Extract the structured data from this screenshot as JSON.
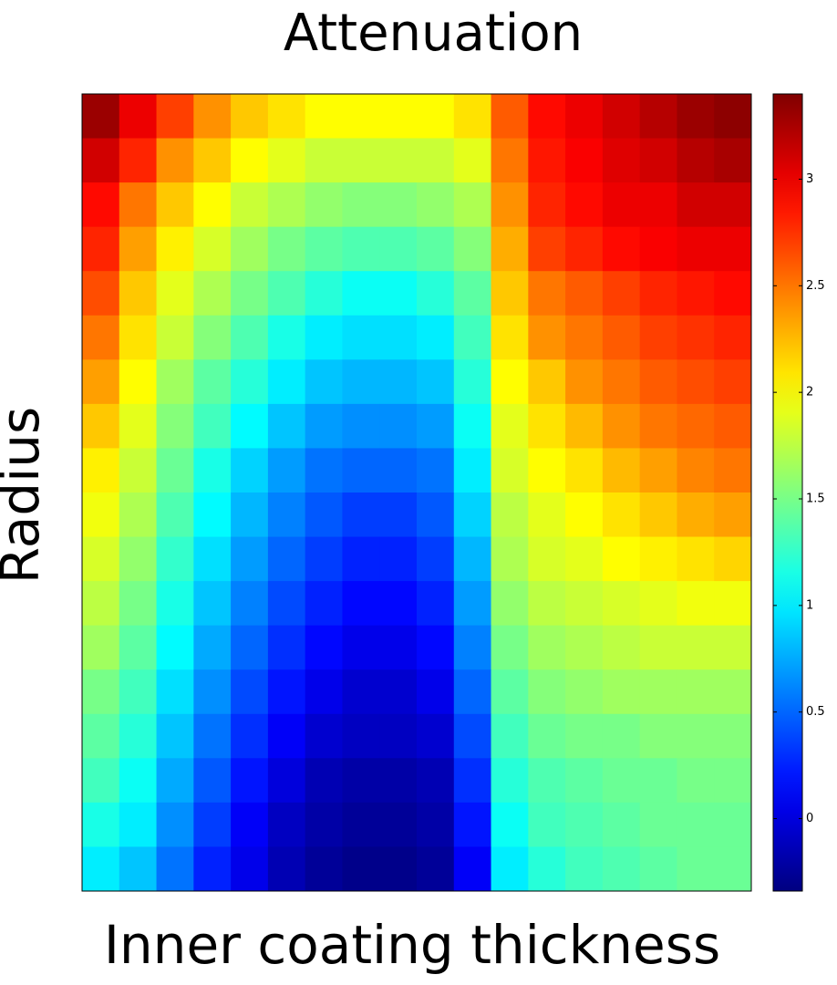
{
  "chart_data": {
    "type": "heatmap",
    "title": "Attenuation",
    "xlabel": "Inner coating thickness",
    "ylabel": "Radius",
    "colormap": "jet",
    "clim": [
      -0.34,
      3.4
    ],
    "cticks": [
      0,
      0.5,
      1,
      1.5,
      2,
      2.5,
      3
    ],
    "z": [
      [
        3.3,
        3.0,
        2.7,
        2.4,
        2.2,
        2.1,
        2.0,
        2.0,
        2.0,
        2.0,
        2.1,
        2.6,
        2.9,
        3.0,
        3.1,
        3.2,
        3.3,
        3.35
      ],
      [
        3.1,
        2.8,
        2.4,
        2.2,
        2.0,
        1.9,
        1.8,
        1.8,
        1.8,
        1.8,
        1.9,
        2.5,
        2.85,
        2.95,
        3.05,
        3.1,
        3.2,
        3.25
      ],
      [
        2.9,
        2.5,
        2.2,
        2.0,
        1.8,
        1.7,
        1.6,
        1.55,
        1.55,
        1.6,
        1.7,
        2.4,
        2.8,
        2.9,
        3.0,
        3.0,
        3.1,
        3.1
      ],
      [
        2.8,
        2.35,
        2.05,
        1.85,
        1.65,
        1.5,
        1.4,
        1.35,
        1.35,
        1.4,
        1.55,
        2.3,
        2.7,
        2.8,
        2.9,
        2.95,
        3.0,
        3.0
      ],
      [
        2.65,
        2.2,
        1.9,
        1.7,
        1.5,
        1.35,
        1.2,
        1.1,
        1.1,
        1.2,
        1.4,
        2.2,
        2.5,
        2.6,
        2.7,
        2.8,
        2.85,
        2.9
      ],
      [
        2.5,
        2.1,
        1.8,
        1.55,
        1.35,
        1.15,
        1.0,
        0.95,
        0.95,
        1.0,
        1.3,
        2.1,
        2.4,
        2.5,
        2.6,
        2.7,
        2.75,
        2.8
      ],
      [
        2.35,
        2.0,
        1.65,
        1.4,
        1.2,
        1.0,
        0.85,
        0.8,
        0.8,
        0.85,
        1.2,
        2.0,
        2.2,
        2.4,
        2.5,
        2.6,
        2.65,
        2.7
      ],
      [
        2.2,
        1.9,
        1.55,
        1.3,
        1.05,
        0.85,
        0.7,
        0.65,
        0.65,
        0.7,
        1.1,
        1.9,
        2.1,
        2.25,
        2.4,
        2.5,
        2.55,
        2.6
      ],
      [
        2.05,
        1.8,
        1.45,
        1.15,
        0.9,
        0.7,
        0.55,
        0.5,
        0.5,
        0.55,
        1.0,
        1.85,
        2.0,
        2.1,
        2.25,
        2.35,
        2.45,
        2.5
      ],
      [
        1.95,
        1.7,
        1.35,
        1.05,
        0.8,
        0.6,
        0.45,
        0.35,
        0.35,
        0.45,
        0.9,
        1.75,
        1.9,
        2.0,
        2.1,
        2.2,
        2.3,
        2.35
      ],
      [
        1.85,
        1.6,
        1.25,
        0.95,
        0.7,
        0.5,
        0.35,
        0.25,
        0.25,
        0.35,
        0.8,
        1.7,
        1.85,
        1.9,
        2.0,
        2.05,
        2.1,
        2.15
      ],
      [
        1.75,
        1.5,
        1.15,
        0.85,
        0.6,
        0.4,
        0.25,
        0.15,
        0.15,
        0.25,
        0.7,
        1.6,
        1.75,
        1.8,
        1.85,
        1.9,
        1.95,
        1.95
      ],
      [
        1.65,
        1.4,
        1.05,
        0.75,
        0.5,
        0.3,
        0.15,
        0.05,
        0.05,
        0.15,
        0.6,
        1.5,
        1.65,
        1.7,
        1.75,
        1.8,
        1.8,
        1.8
      ],
      [
        1.5,
        1.3,
        0.95,
        0.65,
        0.4,
        0.2,
        0.05,
        -0.05,
        -0.05,
        0.05,
        0.5,
        1.4,
        1.55,
        1.6,
        1.65,
        1.65,
        1.65,
        1.65
      ],
      [
        1.4,
        1.2,
        0.85,
        0.55,
        0.3,
        0.1,
        -0.05,
        -0.1,
        -0.1,
        -0.05,
        0.4,
        1.3,
        1.45,
        1.5,
        1.5,
        1.55,
        1.55,
        1.55
      ],
      [
        1.3,
        1.1,
        0.75,
        0.45,
        0.2,
        0.0,
        -0.15,
        -0.2,
        -0.2,
        -0.15,
        0.3,
        1.2,
        1.35,
        1.4,
        1.45,
        1.45,
        1.5,
        1.5
      ],
      [
        1.15,
        1.0,
        0.65,
        0.35,
        0.1,
        -0.1,
        -0.2,
        -0.25,
        -0.25,
        -0.2,
        0.2,
        1.1,
        1.3,
        1.35,
        1.4,
        1.45,
        1.45,
        1.45
      ],
      [
        1.0,
        0.85,
        0.55,
        0.25,
        0.05,
        -0.15,
        -0.25,
        -0.3,
        -0.3,
        -0.25,
        0.1,
        1.0,
        1.2,
        1.3,
        1.35,
        1.4,
        1.45,
        1.45
      ]
    ]
  }
}
